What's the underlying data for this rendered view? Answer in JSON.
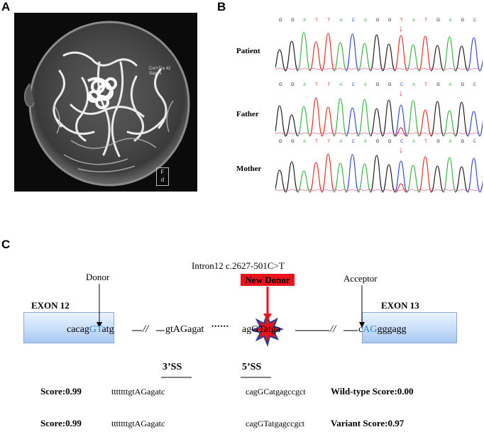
{
  "panels": {
    "a": "A",
    "b": "B",
    "c": "C"
  },
  "mri": {
    "overlay_lines": [
      "Cor>Tra 42",
      "Sag -5"
    ],
    "orientation_box": [
      "F",
      "d"
    ]
  },
  "chromatograms": {
    "bases": [
      "G",
      "G",
      "A",
      "T",
      "T",
      "A",
      "C",
      "A",
      "G",
      "G",
      "T",
      "A",
      "T",
      "G",
      "A",
      "G",
      "C",
      "C"
    ],
    "rows": [
      {
        "label": "Patient",
        "variant_base": "T"
      },
      {
        "label": "Father",
        "variant_base": "C"
      },
      {
        "label": "Mother",
        "variant_base": "C"
      }
    ],
    "base_colors": {
      "A": "#2fae3b",
      "C": "#2b3fd6",
      "G": "#111111",
      "T": "#e0261b"
    },
    "variant_index": 10
  },
  "splice": {
    "exon_left": "EXON 12",
    "exon_right": "EXON 13",
    "donor_label": "Donor",
    "acceptor_label": "Acceptor",
    "variant_label": "Intron12 c.2627-501C>T",
    "new_donor_label": "New Donor",
    "seq": {
      "s1_pre": "cacag",
      "s1_blue": "GT",
      "s1_post": "atg",
      "break1": "//",
      "s2": "gtAGagat",
      "dots": "••••••",
      "s3_pre": "ag",
      "s3_star": "GT",
      "s3_post": "atga",
      "break2": "//",
      "s4_pre": "c",
      "s4_blue": "AG",
      "s4_post": "gggagg"
    },
    "headers": {
      "ss3": "3’SS",
      "ss5": "5’SS"
    },
    "score_rows": [
      {
        "score": "Score:0.99",
        "seq3": "tttttttgtAGagatc",
        "seq5": "cagGCatgagccgct",
        "result": "Wild-type Score:0.00"
      },
      {
        "score": "Score:0.99",
        "seq3": "tttttttgtAGagatc",
        "seq5": "cagGTatgagccgct",
        "result": "Variant Score:0.97"
      }
    ]
  }
}
